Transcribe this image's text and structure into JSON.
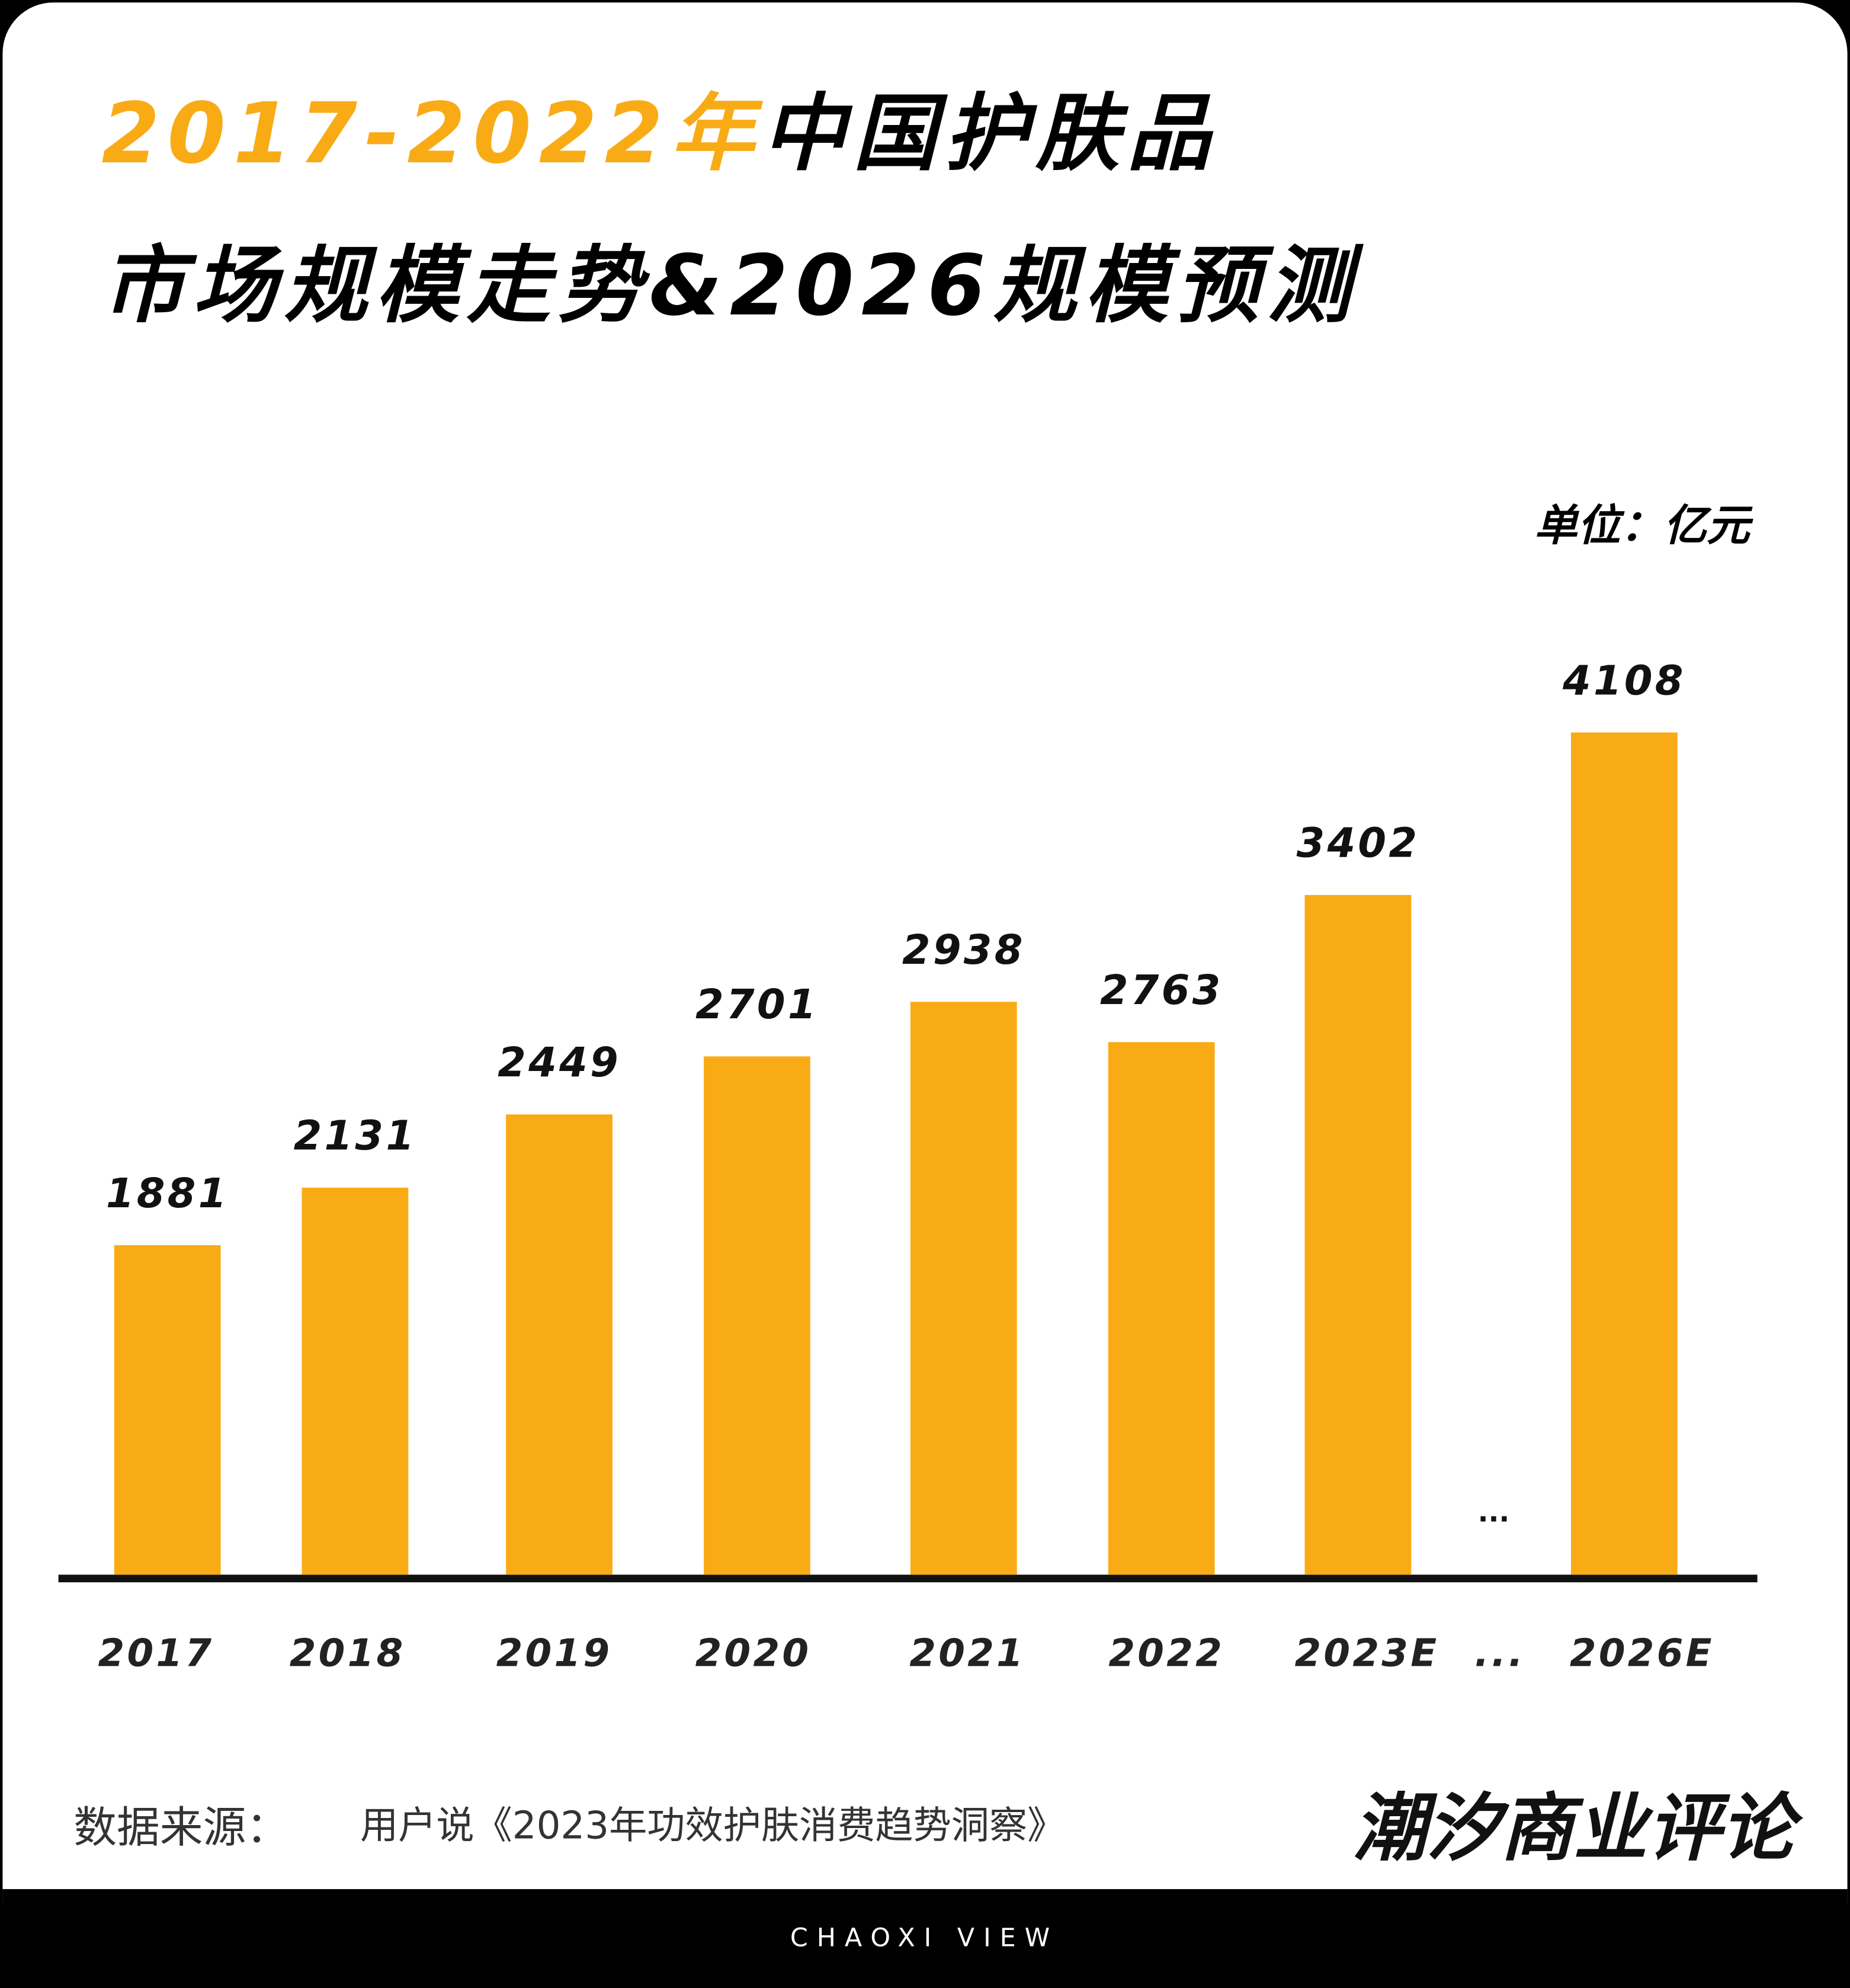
{
  "chart_data": {
    "type": "bar",
    "title": {
      "highlight": "2017-2022年",
      "rest": "中国护肤品",
      "line2": "市场规模走势&2026规模预测"
    },
    "unit": "单位：亿元",
    "categories": [
      "2017",
      "2018",
      "2019",
      "2020",
      "2021",
      "2022",
      "2023E",
      "...",
      "2026E"
    ],
    "values": [
      1881,
      2131,
      2449,
      2701,
      2938,
      2763,
      3402,
      null,
      4108
    ],
    "gap_marker": "...",
    "color": "#f9ab16",
    "ylim": [
      450,
      4200
    ]
  },
  "footer": {
    "source_label": "数据来源：",
    "source": "用户说《2023年功效护肤消费趋势洞察》",
    "brand": "潮汐商业评论",
    "tagline": "CHAOXI VIEW"
  }
}
